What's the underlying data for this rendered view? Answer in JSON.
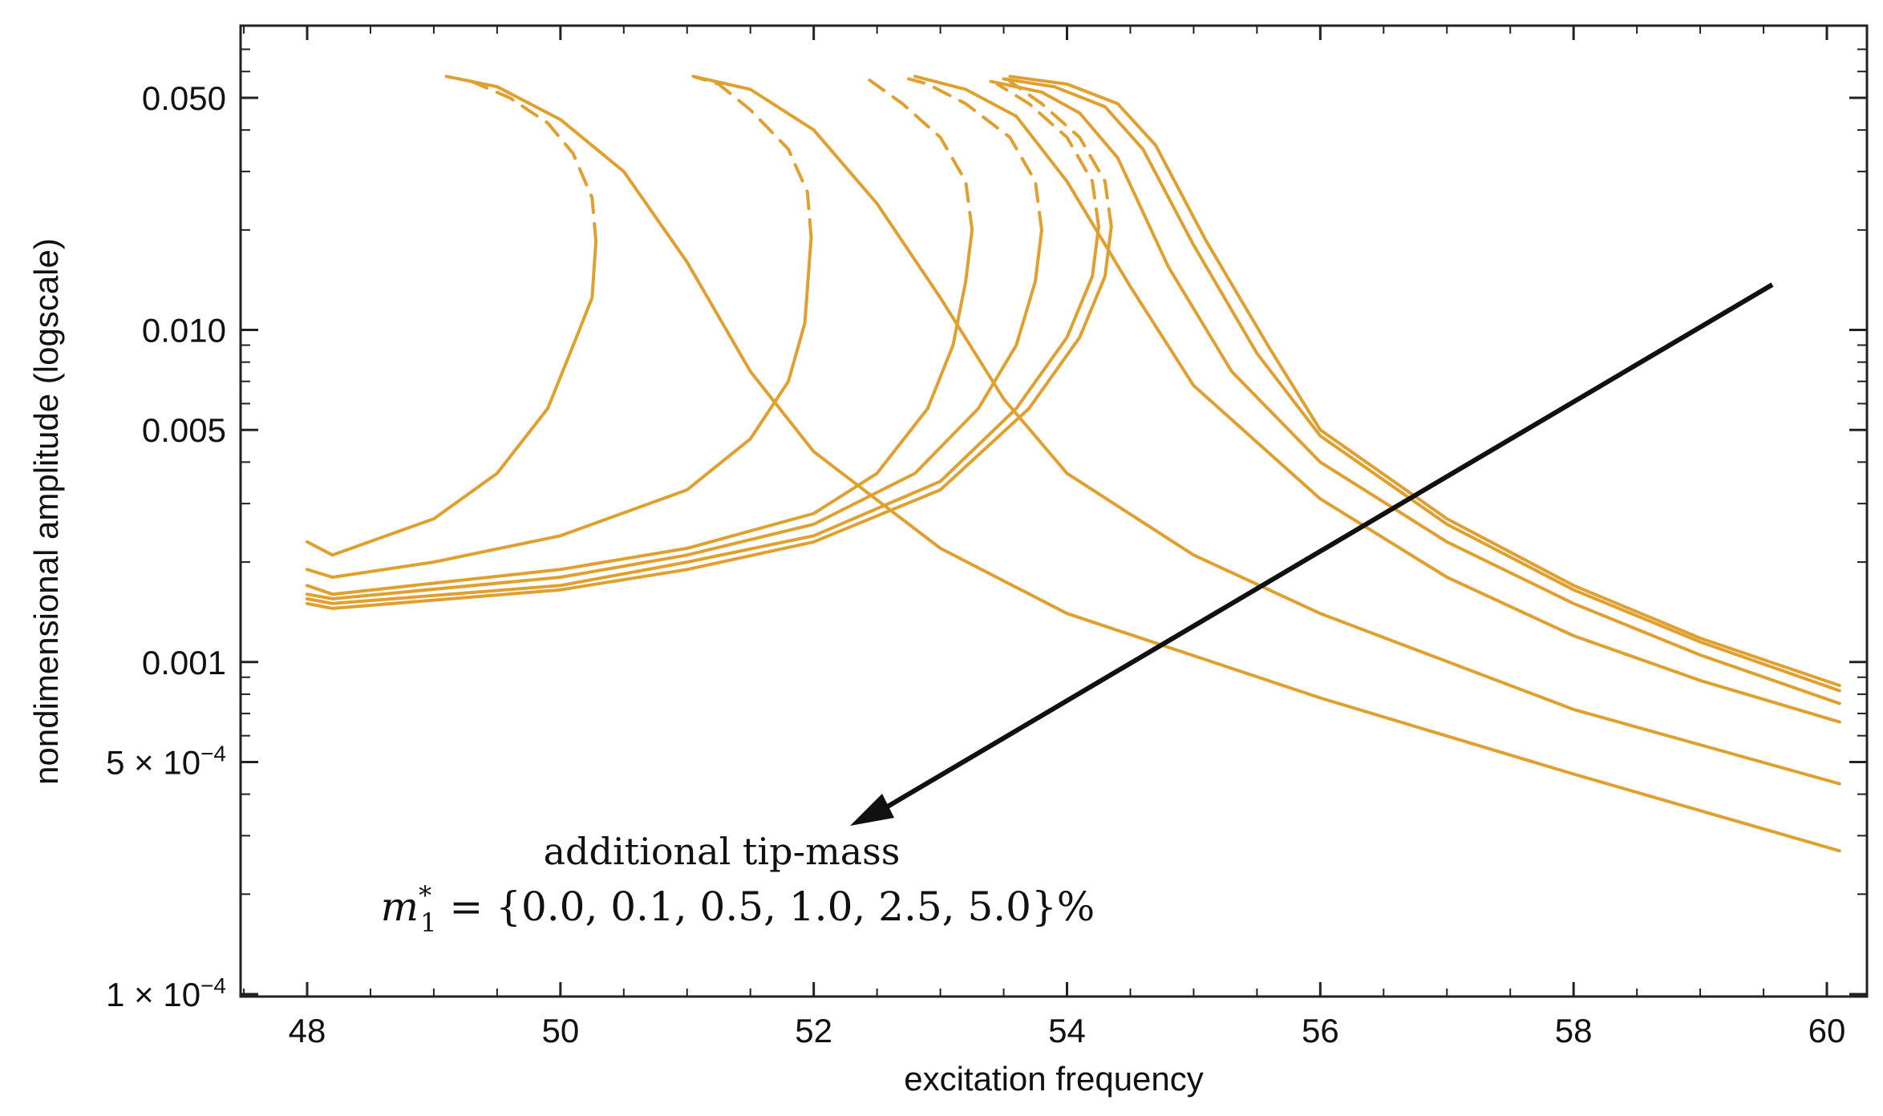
{
  "chart_data": {
    "type": "line",
    "title": "",
    "xlabel": "excitation frequency",
    "ylabel": "nondimensional amplitude (logscale)",
    "xlim": [
      47.5,
      60.2
    ],
    "ylim": [
      0.0001,
      0.075
    ],
    "yscale": "log",
    "grid": false,
    "x_ticks": [
      48,
      50,
      52,
      54,
      56,
      58,
      60
    ],
    "x_tick_labels": [
      "48",
      "50",
      "52",
      "54",
      "56",
      "58",
      "60"
    ],
    "y_ticks": [
      0.0001,
      0.0005,
      0.001,
      0.005,
      0.01,
      0.05
    ],
    "y_tick_labels": [
      {
        "base": "1 × 10",
        "exp": "−4"
      },
      {
        "base": "5 × 10",
        "exp": "−4"
      },
      {
        "base": "0.001",
        "exp": ""
      },
      {
        "base": "0.005",
        "exp": ""
      },
      {
        "base": "0.010",
        "exp": ""
      },
      {
        "base": "0.050",
        "exp": ""
      }
    ],
    "curve_color": "#e0a030",
    "arrow_color": "#111111",
    "annotation": {
      "line1": "additional tip-mass",
      "line2_prefix": "m",
      "line2_sup": "*",
      "line2_sub": "1",
      "line2_rest": " = {0.0, 0.1, 0.5, 1.0, 2.5, 5.0}%"
    },
    "series": [
      {
        "name": "m1* = 0.0%",
        "lower": [
          [
            48.0,
            0.0023
          ],
          [
            48.2,
            0.0021
          ],
          [
            49.0,
            0.0027
          ],
          [
            49.5,
            0.0037
          ],
          [
            49.9,
            0.0058
          ],
          [
            50.15,
            0.01
          ],
          [
            50.25,
            0.0125
          ],
          [
            50.28,
            0.0185
          ]
        ],
        "unstable": [
          [
            50.28,
            0.0185
          ],
          [
            50.25,
            0.025
          ],
          [
            50.1,
            0.034
          ],
          [
            49.9,
            0.042
          ],
          [
            49.6,
            0.05
          ],
          [
            49.3,
            0.056
          ],
          [
            49.1,
            0.058
          ]
        ],
        "upper": [
          [
            49.2,
            0.057
          ],
          [
            49.5,
            0.054
          ],
          [
            50.0,
            0.043
          ],
          [
            50.5,
            0.03
          ],
          [
            51.0,
            0.016
          ],
          [
            51.5,
            0.0075
          ],
          [
            52.0,
            0.0043
          ],
          [
            53.0,
            0.0022
          ],
          [
            54.0,
            0.0014
          ],
          [
            56.0,
            0.00078
          ],
          [
            58.0,
            0.00046
          ],
          [
            60.1,
            0.00027
          ]
        ]
      },
      {
        "name": "m1* = 0.1%",
        "lower": [
          [
            48.0,
            0.0019
          ],
          [
            48.2,
            0.0018
          ],
          [
            49.0,
            0.002
          ],
          [
            50.0,
            0.0024
          ],
          [
            51.0,
            0.0033
          ],
          [
            51.5,
            0.0047
          ],
          [
            51.8,
            0.007
          ],
          [
            51.93,
            0.0105
          ],
          [
            51.98,
            0.019
          ]
        ],
        "unstable": [
          [
            51.98,
            0.019
          ],
          [
            51.95,
            0.026
          ],
          [
            51.8,
            0.035
          ],
          [
            51.5,
            0.046
          ],
          [
            51.25,
            0.055
          ],
          [
            51.05,
            0.058
          ]
        ],
        "upper": [
          [
            51.05,
            0.058
          ],
          [
            51.5,
            0.053
          ],
          [
            52.0,
            0.04
          ],
          [
            52.5,
            0.024
          ],
          [
            53.0,
            0.0125
          ],
          [
            53.5,
            0.0062
          ],
          [
            54.0,
            0.0037
          ],
          [
            55.0,
            0.0021
          ],
          [
            56.0,
            0.0014
          ],
          [
            58.0,
            0.00072
          ],
          [
            60.1,
            0.00043
          ]
        ]
      },
      {
        "name": "m1* = 0.5%",
        "lower": [
          [
            48.0,
            0.0017
          ],
          [
            48.2,
            0.0016
          ],
          [
            50.0,
            0.0019
          ],
          [
            51.0,
            0.0022
          ],
          [
            52.0,
            0.0028
          ],
          [
            52.5,
            0.0037
          ],
          [
            52.9,
            0.0058
          ],
          [
            53.1,
            0.009
          ],
          [
            53.2,
            0.014
          ],
          [
            53.25,
            0.02
          ]
        ],
        "unstable": [
          [
            53.25,
            0.02
          ],
          [
            53.2,
            0.028
          ],
          [
            53.0,
            0.038
          ],
          [
            52.7,
            0.048
          ],
          [
            52.4,
            0.058
          ]
        ],
        "upper": [
          [
            52.8,
            0.058
          ],
          [
            53.2,
            0.053
          ],
          [
            53.6,
            0.044
          ],
          [
            54.0,
            0.028
          ],
          [
            54.5,
            0.0135
          ],
          [
            55.0,
            0.0068
          ],
          [
            56.0,
            0.0031
          ],
          [
            57.0,
            0.0018
          ],
          [
            58.0,
            0.0012
          ],
          [
            59.0,
            0.00088
          ],
          [
            60.1,
            0.00066
          ]
        ]
      },
      {
        "name": "m1* = 1.0%",
        "lower": [
          [
            48.0,
            0.0016
          ],
          [
            48.2,
            0.00155
          ],
          [
            50.0,
            0.0018
          ],
          [
            51.0,
            0.0021
          ],
          [
            52.0,
            0.0026
          ],
          [
            52.8,
            0.0037
          ],
          [
            53.3,
            0.0058
          ],
          [
            53.6,
            0.009
          ],
          [
            53.75,
            0.014
          ],
          [
            53.8,
            0.02
          ]
        ],
        "unstable": [
          [
            53.8,
            0.02
          ],
          [
            53.75,
            0.028
          ],
          [
            53.55,
            0.038
          ],
          [
            53.2,
            0.048
          ],
          [
            52.9,
            0.055
          ],
          [
            52.75,
            0.057
          ]
        ],
        "upper": [
          [
            53.4,
            0.056
          ],
          [
            53.8,
            0.052
          ],
          [
            54.1,
            0.045
          ],
          [
            54.4,
            0.033
          ],
          [
            54.8,
            0.0155
          ],
          [
            55.3,
            0.0075
          ],
          [
            56.0,
            0.004
          ],
          [
            57.0,
            0.0023
          ],
          [
            58.0,
            0.0015
          ],
          [
            59.0,
            0.00105
          ],
          [
            60.1,
            0.00075
          ]
        ]
      },
      {
        "name": "m1* = 2.5%",
        "lower": [
          [
            48.0,
            0.00155
          ],
          [
            48.2,
            0.0015
          ],
          [
            50.0,
            0.0017
          ],
          [
            51.0,
            0.002
          ],
          [
            52.0,
            0.0024
          ],
          [
            53.0,
            0.0035
          ],
          [
            53.6,
            0.0058
          ],
          [
            54.0,
            0.0095
          ],
          [
            54.2,
            0.0145
          ],
          [
            54.25,
            0.0205
          ]
        ],
        "unstable": [
          [
            54.25,
            0.0205
          ],
          [
            54.2,
            0.028
          ],
          [
            54.0,
            0.038
          ],
          [
            53.7,
            0.048
          ],
          [
            53.45,
            0.055
          ]
        ],
        "upper": [
          [
            53.5,
            0.057
          ],
          [
            53.9,
            0.054
          ],
          [
            54.3,
            0.047
          ],
          [
            54.6,
            0.035
          ],
          [
            55.0,
            0.018
          ],
          [
            55.5,
            0.0085
          ],
          [
            56.0,
            0.0048
          ],
          [
            57.0,
            0.0026
          ],
          [
            58.0,
            0.00165
          ],
          [
            59.0,
            0.00115
          ],
          [
            60.1,
            0.00082
          ]
        ]
      },
      {
        "name": "m1* = 5.0%",
        "lower": [
          [
            48.0,
            0.0015
          ],
          [
            48.2,
            0.00145
          ],
          [
            50.0,
            0.00165
          ],
          [
            51.0,
            0.0019
          ],
          [
            52.0,
            0.0023
          ],
          [
            53.0,
            0.0033
          ],
          [
            53.7,
            0.0058
          ],
          [
            54.1,
            0.0095
          ],
          [
            54.3,
            0.0145
          ],
          [
            54.35,
            0.0205
          ]
        ],
        "unstable": [
          [
            54.35,
            0.0205
          ],
          [
            54.3,
            0.028
          ],
          [
            54.1,
            0.038
          ],
          [
            53.8,
            0.048
          ],
          [
            53.55,
            0.056
          ]
        ],
        "upper": [
          [
            53.55,
            0.058
          ],
          [
            54.0,
            0.055
          ],
          [
            54.4,
            0.048
          ],
          [
            54.7,
            0.036
          ],
          [
            55.1,
            0.0185
          ],
          [
            55.6,
            0.0088
          ],
          [
            56.0,
            0.005
          ],
          [
            57.0,
            0.0027
          ],
          [
            58.0,
            0.0017
          ],
          [
            59.0,
            0.00118
          ],
          [
            60.1,
            0.00085
          ]
        ]
      }
    ]
  }
}
